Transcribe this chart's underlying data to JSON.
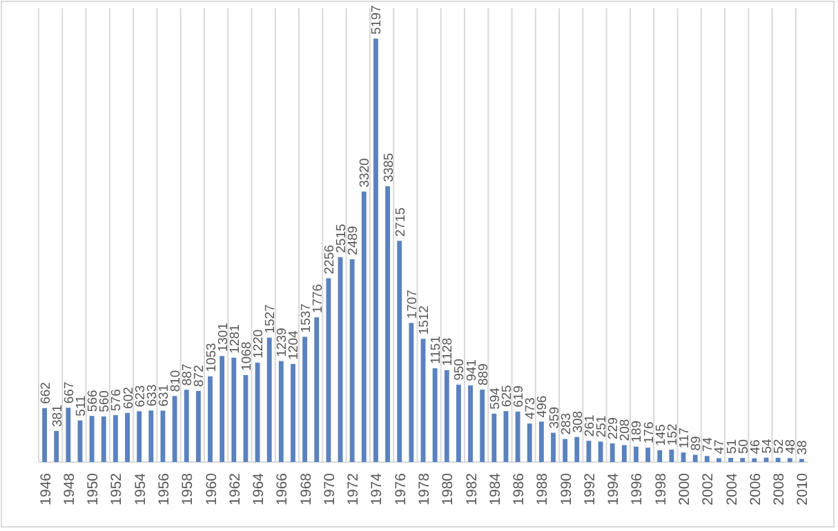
{
  "chart_data": {
    "type": "bar",
    "categories": [
      "1946",
      null,
      "1948",
      null,
      "1950",
      null,
      "1952",
      null,
      "1954",
      null,
      "1956",
      null,
      "1958",
      null,
      "1960",
      null,
      "1962",
      null,
      "1964",
      null,
      "1966",
      null,
      "1968",
      null,
      "1970",
      null,
      "1972",
      null,
      "1974",
      null,
      "1976",
      null,
      "1978",
      null,
      "1980",
      null,
      "1982",
      null,
      "1984",
      null,
      "1986",
      null,
      "1988",
      null,
      "1990",
      null,
      "1992",
      null,
      "1994",
      null,
      "1996",
      null,
      "1998",
      null,
      "2000",
      null,
      "2002",
      null,
      "2004",
      null,
      "2006",
      null,
      "2008",
      null,
      "2010"
    ],
    "values": [
      662,
      381,
      667,
      511,
      566,
      560,
      576,
      602,
      623,
      633,
      631,
      810,
      887,
      872,
      1053,
      1301,
      1281,
      1068,
      1220,
      1527,
      1239,
      1204,
      1537,
      1776,
      2256,
      2515,
      2489,
      3320,
      5197,
      3385,
      2715,
      1707,
      1512,
      1151,
      1128,
      950,
      941,
      889,
      594,
      625,
      619,
      473,
      496,
      359,
      283,
      308,
      261,
      251,
      229,
      208,
      189,
      176,
      145,
      152,
      117,
      89,
      74,
      47,
      51,
      50,
      46,
      54,
      52,
      48,
      38
    ],
    "color": "#5b82c0",
    "data_labels": true,
    "grid": "x"
  }
}
